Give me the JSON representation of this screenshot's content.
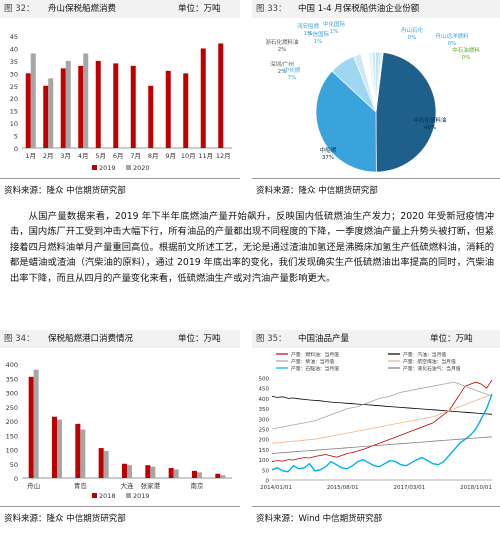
{
  "colors": {
    "red": "#c00000",
    "grey": "#a6a6a6",
    "blue": "#2e75b6",
    "text": "#222222"
  },
  "figures": [
    {
      "num": "图 32：",
      "title": "舟山保税船燃消费",
      "unit": "单位：万吨",
      "source": "资料来源：隆众  中信期货研究部"
    },
    {
      "num": "图 33：",
      "title": "中国 1-4 月保税船供油企业份额",
      "unit": "",
      "source": "资料来源：隆众  中信期货研究部"
    },
    {
      "num": "图 34：",
      "title": "保税船燃港口消费情况",
      "unit": "单位：万吨",
      "source": "资料来源：隆众  中信期货研究部"
    },
    {
      "num": "图 35：",
      "title": "中国油品产量",
      "unit": "单位：万吨",
      "source": "资料来源：Wind  中信期货研究部"
    }
  ],
  "paragraph": "从国产量数据来看，2019 年下半年底燃油产量开始飙升，反映国内低硫燃油生产发力；2020 年受新冠疫情冲击，国内炼厂开工受到冲击大幅下行，所有油品的产量都出现不同程度的下降，一季度燃油产量上升势头被打断，但紧接着四月燃料油单月产量重回高位。根据前文所述工艺，无论是通过渣油加氢还是沸腾床加氢生产低硫燃料油，消耗的都是蜡油或渣油（汽柴油的原料），通过 2019 年底出率的变化，我们发现确实生产低硫燃油出率提高的同时，汽柴油出率下降，而且从四月的产量变化来看，低硫燃油生产或对汽油产量影响更大。",
  "chart_data": [
    {
      "type": "bar",
      "title": "舟山保税船燃消费",
      "categories": [
        "1月",
        "2月",
        "3月",
        "4月",
        "5月",
        "6月",
        "7月",
        "8月",
        "9月",
        "10月",
        "11月",
        "12月"
      ],
      "series": [
        {
          "name": "2019",
          "color": "#c00000",
          "values": [
            30,
            25,
            32,
            33,
            35,
            34,
            33,
            25,
            31,
            30,
            40,
            42
          ]
        },
        {
          "name": "2020",
          "color": "#a6a6a6",
          "values": [
            38,
            28,
            35,
            38,
            null,
            null,
            null,
            null,
            null,
            null,
            null,
            null
          ]
        }
      ],
      "yticks": [
        0,
        5,
        10,
        15,
        20,
        25,
        30,
        35,
        40,
        45
      ],
      "ylim": [
        0,
        45
      ],
      "legend": "bottom"
    },
    {
      "type": "pie",
      "title": "中国 1-4 月保税船供油企业份额",
      "slices": [
        {
          "label": "中石化燃料油",
          "pct": "48%",
          "value": 48,
          "color": "#1f5f8b"
        },
        {
          "label": "中船燃",
          "pct": "37%",
          "value": 37,
          "color": "#3aa3dc"
        },
        {
          "label": "中长燃",
          "pct": "7%",
          "value": 7,
          "color": "#9fd6f2"
        },
        {
          "label": "深圳/广州",
          "pct": "2%",
          "value": 2,
          "color": "#cfe8f7"
        },
        {
          "label": "浙石化燃料油",
          "pct": "2%",
          "value": 2,
          "color": "#ffffff"
        },
        {
          "label": "华信国际",
          "pct": "1%",
          "value": 1,
          "color": "#e6f4fb"
        },
        {
          "label": "鸿安船燃",
          "pct": "1%",
          "value": 1,
          "color": "#d0ebf8"
        },
        {
          "label": "中化国际",
          "pct": "1%",
          "value": 1,
          "color": "#bde2f5"
        },
        {
          "label": "舟山石化",
          "pct": "0%",
          "value": 0.5,
          "color": "#a8d8f0"
        },
        {
          "label": "舟山远洋燃料",
          "pct": "0%",
          "value": 0.3,
          "color": "#90cdeb"
        },
        {
          "label": "中石油燃料",
          "pct": "0%",
          "value": 0.2,
          "color": "#7cc3e6"
        }
      ]
    },
    {
      "type": "bar",
      "title": "保税船燃港口消费情况",
      "categories": [
        "舟山",
        "",
        "青岛",
        "",
        "大连",
        "张家港",
        "",
        "南京",
        ""
      ],
      "series": [
        {
          "name": "2018",
          "color": "#c00000",
          "values": [
            355,
            215,
            190,
            105,
            50,
            45,
            35,
            25,
            15
          ]
        },
        {
          "name": "2019",
          "color": "#a6a6a6",
          "values": [
            380,
            205,
            170,
            95,
            45,
            40,
            30,
            20,
            10
          ]
        }
      ],
      "yticks": [
        0,
        50,
        100,
        150,
        200,
        250,
        300,
        350,
        400
      ],
      "ylim": [
        0,
        400
      ],
      "legend": "bottom"
    },
    {
      "type": "line",
      "title": "中国油品产量",
      "x_labels": [
        "2014/01/01",
        "2015/08/01",
        "2017/03/01",
        "2018/10/01"
      ],
      "yticks": [
        0,
        50,
        100,
        150,
        200,
        250,
        300,
        350,
        400,
        450,
        500
      ],
      "ylim": [
        0,
        500
      ],
      "legend": "top",
      "series": [
        {
          "name": "产量：燃料油：当月值",
          "color": "#c00000",
          "values": [
            90,
            95,
            92,
            100,
            98,
            105,
            110,
            108,
            115,
            120,
            125,
            118,
            112,
            120,
            130,
            135,
            142,
            150,
            160,
            170,
            180,
            190,
            200,
            210,
            220,
            230,
            240,
            250,
            260,
            270,
            280,
            300,
            320,
            340,
            380,
            420,
            460,
            470,
            480,
            470,
            450,
            490
          ]
        },
        {
          "name": "产量：汽油：当月值",
          "color": "#000000",
          "values": [
            410,
            405,
            408,
            400,
            402,
            398,
            395,
            392,
            390,
            388,
            385,
            382,
            380,
            378,
            376,
            374,
            372,
            370,
            368,
            366,
            364,
            362,
            360,
            358,
            356,
            354,
            352,
            350,
            348,
            346,
            344,
            342,
            340,
            338,
            336,
            334,
            332,
            330,
            328,
            326,
            324,
            322
          ]
        },
        {
          "name": "产量：柴油：当月值",
          "color": "#a6a6a6",
          "values": [
            250,
            255,
            260,
            265,
            270,
            275,
            280,
            285,
            290,
            300,
            310,
            320,
            330,
            340,
            350,
            355,
            360,
            370,
            380,
            390,
            400,
            405,
            410,
            420,
            430,
            435,
            440,
            445,
            450,
            455,
            460,
            465,
            470,
            475,
            480,
            470,
            460,
            450,
            440,
            430,
            420,
            410
          ]
        },
        {
          "name": "产量：航空煤油：当月值",
          "color": "#f4b183",
          "values": [
            180,
            182,
            185,
            188,
            190,
            192,
            195,
            198,
            200,
            205,
            210,
            215,
            220,
            225,
            230,
            235,
            240,
            245,
            250,
            255,
            260,
            265,
            270,
            275,
            280,
            285,
            290,
            295,
            300,
            305,
            310,
            320,
            330,
            340,
            350,
            360,
            370,
            380,
            390,
            400,
            410,
            420
          ]
        },
        {
          "name": "产量：石脑油：当月值",
          "color": "#00b0f0",
          "values": [
            50,
            60,
            45,
            40,
            70,
            55,
            60,
            80,
            45,
            50,
            65,
            90,
            75,
            60,
            55,
            70,
            90,
            100,
            85,
            70,
            65,
            80,
            95,
            90,
            75,
            70,
            85,
            100,
            110,
            95,
            80,
            75,
            90,
            120,
            150,
            180,
            200,
            220,
            250,
            300,
            350,
            420
          ]
        },
        {
          "name": "产量：液化石油气：当月值",
          "color": "#7f7f7f",
          "values": [
            130,
            132,
            134,
            136,
            138,
            140,
            142,
            144,
            146,
            148,
            150,
            152,
            154,
            156,
            158,
            160,
            162,
            164,
            166,
            168,
            170,
            172,
            174,
            176,
            178,
            180,
            182,
            184,
            186,
            188,
            190,
            192,
            194,
            196,
            198,
            200,
            202,
            204,
            206,
            208,
            210,
            212
          ]
        }
      ]
    }
  ]
}
